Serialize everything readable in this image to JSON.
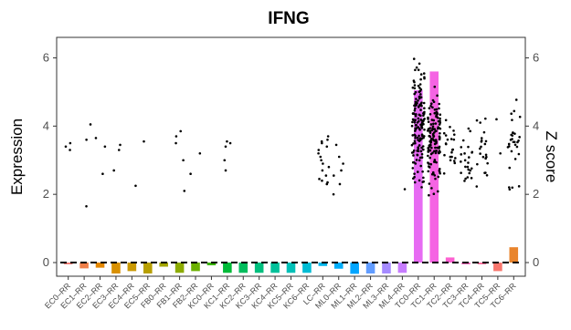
{
  "chart_data": {
    "type": "bar",
    "title": "IFNG",
    "ylabel": "Expression",
    "ylabel_right": "Z score",
    "ylim": [
      -0.4,
      6.6
    ],
    "yticks": [
      "0",
      "2",
      "4",
      "6"
    ],
    "grid": false,
    "legend": "none",
    "categories": [
      "EC0–RR",
      "EC1–RR",
      "EC2–RR",
      "EC3–RR",
      "EC4–RR",
      "EC5–RR",
      "FB0–RR",
      "FB1–RR",
      "FB2–RR",
      "KC0–RR",
      "KC1–RR",
      "KC2–RR",
      "KC3–RR",
      "KC4–RR",
      "KC5–RR",
      "KC6–RR",
      "LC–RR",
      "ML0–RR",
      "ML1–RR",
      "ML2–RR",
      "ML3–RR",
      "ML4–RR",
      "TC0–RR",
      "TC1–RR",
      "TC2–RR",
      "TC3–RR",
      "TC4–RR",
      "TC5–RR",
      "TC6–RR"
    ],
    "zscore_values": [
      -0.05,
      -0.17,
      -0.15,
      -0.32,
      -0.25,
      -0.32,
      -0.12,
      -0.3,
      -0.25,
      -0.08,
      -0.3,
      -0.3,
      -0.3,
      -0.3,
      -0.3,
      -0.3,
      -0.1,
      -0.18,
      -0.33,
      -0.32,
      -0.32,
      -0.3,
      5.05,
      5.6,
      0.15,
      -0.05,
      -0.05,
      -0.25,
      0.45
    ],
    "bar_colors": [
      "#F8766D",
      "#EF7F49",
      "#E58700",
      "#D89000",
      "#C99800",
      "#B79F00",
      "#A3A500",
      "#8CAB00",
      "#6BB100",
      "#39B600",
      "#00BA38",
      "#00BD5C",
      "#00BF7D",
      "#00C19A",
      "#00C0B7",
      "#00BCD4",
      "#00B6EB",
      "#00ADFA",
      "#00A5FF",
      "#619CFF",
      "#A58AFF",
      "#C77CFF",
      "#E76BF3",
      "#F564E3",
      "#FD61D1",
      "#FF62BC",
      "#FF6A98",
      "#F8766D",
      "#E9842C"
    ],
    "points": [
      {
        "cat": 0,
        "y": [
          3.5,
          3.4,
          3.3
        ]
      },
      {
        "cat": 1,
        "y": [
          4.05,
          3.6,
          1.65
        ]
      },
      {
        "cat": 2,
        "y": [
          3.65,
          3.4,
          2.6
        ]
      },
      {
        "cat": 3,
        "y": [
          3.45,
          3.3,
          2.7
        ]
      },
      {
        "cat": 4,
        "y": [
          2.25
        ]
      },
      {
        "cat": 5,
        "y": [
          3.55
        ]
      },
      {
        "cat": 7,
        "y": [
          3.85,
          3.7,
          3.5,
          3.0,
          2.1
        ]
      },
      {
        "cat": 8,
        "y": [
          3.2,
          2.6
        ]
      },
      {
        "cat": 10,
        "y": [
          3.55,
          3.5,
          3.4,
          3.0,
          2.7
        ]
      },
      {
        "cat": 16,
        "y": [
          3.7,
          3.6,
          3.55,
          3.5,
          3.4,
          3.3,
          3.2,
          3.1,
          3.0,
          2.9,
          2.8,
          2.7,
          2.55,
          2.45,
          2.4,
          2.35,
          2.3
        ]
      },
      {
        "cat": 17,
        "y": [
          3.45,
          3.1,
          2.9,
          2.7,
          2.55,
          2.3,
          2.0
        ]
      },
      {
        "cat": 21,
        "y": [
          2.15
        ]
      },
      {
        "cat": 27,
        "y": [
          4.2,
          3.2
        ]
      }
    ],
    "dense_points": [
      {
        "cat": 22,
        "ymin": 1.6,
        "ymax": 6.45,
        "n": 150
      },
      {
        "cat": 23,
        "ymin": 1.7,
        "ymax": 5.6,
        "n": 130
      },
      {
        "cat": 24,
        "ymin": 2.4,
        "ymax": 4.6,
        "n": 22
      },
      {
        "cat": 25,
        "ymin": 1.8,
        "ymax": 4.4,
        "n": 24
      },
      {
        "cat": 26,
        "ymin": 1.6,
        "ymax": 4.8,
        "n": 22
      },
      {
        "cat": 28,
        "ymin": 1.7,
        "ymax": 5.4,
        "n": 30
      }
    ],
    "dashed_zero_line": true
  }
}
